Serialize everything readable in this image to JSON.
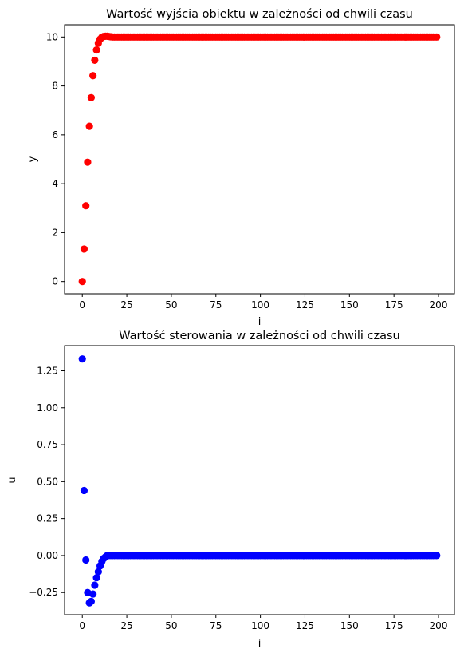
{
  "chart_data": [
    {
      "type": "scatter",
      "title": "Wartość wyjścia obiektu w zależności od chwili czasu",
      "xlabel": "i",
      "ylabel": "y",
      "xlim": [
        -9.95,
        208.95
      ],
      "ylim": [
        -0.5,
        10.5
      ],
      "xticks": [
        0,
        25,
        50,
        75,
        100,
        125,
        150,
        175,
        200
      ],
      "yticks": [
        0,
        2,
        4,
        6,
        8,
        10
      ],
      "grid": false,
      "marker_color": "#ff0000",
      "series": [
        {
          "x_start": 0,
          "x_step": 1,
          "values": [
            0.0,
            1.33,
            3.1,
            4.88,
            6.35,
            7.52,
            8.42,
            9.05,
            9.47,
            9.75,
            9.91,
            9.99,
            10.02,
            10.03,
            10.03,
            10.02,
            10.01,
            10.0,
            10.0,
            10.0
          ],
          "tail_value": 10.0,
          "x_end": 199
        }
      ]
    },
    {
      "type": "scatter",
      "title": "Wartość sterowania w zależności od chwili czasu",
      "xlabel": "i",
      "ylabel": "u",
      "xlim": [
        -9.95,
        208.95
      ],
      "ylim": [
        -0.4,
        1.42
      ],
      "xticks": [
        0,
        25,
        50,
        75,
        100,
        125,
        150,
        175,
        200
      ],
      "yticks": [
        -0.25,
        0.0,
        0.25,
        0.5,
        0.75,
        1.0,
        1.25
      ],
      "ytick_labels": [
        "−0.25",
        "0.00",
        "0.25",
        "0.50",
        "0.75",
        "1.00",
        "1.25"
      ],
      "grid": false,
      "marker_color": "#0000ff",
      "series": [
        {
          "x_start": 0,
          "x_step": 1,
          "values": [
            1.33,
            0.44,
            -0.03,
            -0.25,
            -0.32,
            -0.31,
            -0.26,
            -0.2,
            -0.15,
            -0.11,
            -0.07,
            -0.04,
            -0.02,
            -0.01,
            0.0,
            0.0,
            0.0,
            0.0,
            0.0,
            0.0
          ],
          "tail_value": 0.0,
          "x_end": 199
        }
      ]
    }
  ]
}
